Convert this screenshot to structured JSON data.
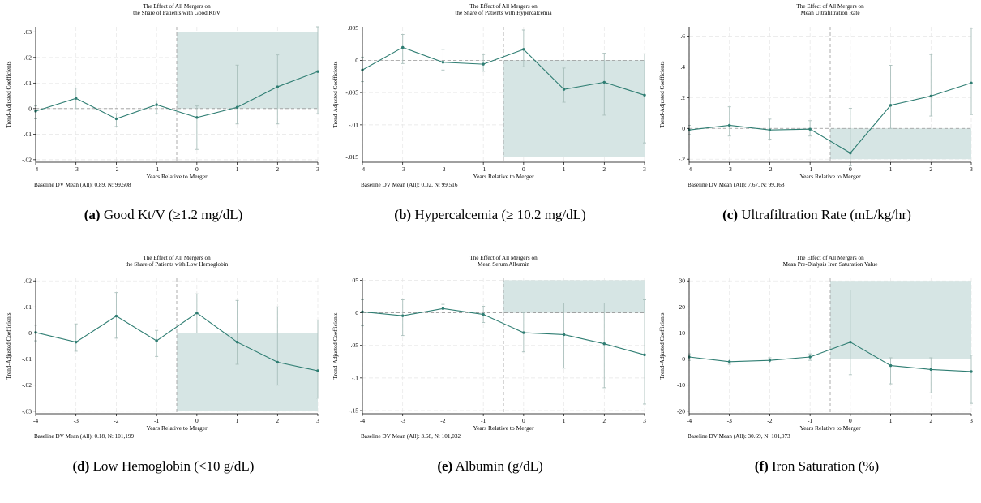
{
  "figure": {
    "panels": [
      {
        "caption_label": "(a)",
        "caption_text": "Good Kt/V (≥1.2 mg/dL)",
        "chart_data": {
          "type": "line",
          "title": [
            "The Effect of All Mergers on",
            "the Share of Patients with Good Kt/V"
          ],
          "xlabel": "Years Relative to Merger",
          "ylabel": "Trend-Adjusted Coefficients",
          "footer": "Baseline DV Mean (All):  0.89,  N:  99,508",
          "x": [
            -4,
            -3,
            -2,
            -1,
            0,
            1,
            2,
            3
          ],
          "y": [
            -0.001,
            0.004,
            -0.004,
            0.0015,
            -0.0035,
            0.0005,
            0.0085,
            0.0145
          ],
          "ci_low": [
            -0.004,
            0.0,
            -0.007,
            -0.002,
            -0.016,
            -0.006,
            -0.006,
            -0.002
          ],
          "ci_high": [
            0.001,
            0.008,
            -0.002,
            0.003,
            0.001,
            0.017,
            0.021,
            0.032
          ],
          "xlim": [
            -4,
            3
          ],
          "ylim": [
            -0.021,
            0.032
          ],
          "yticks": [
            -0.02,
            -0.01,
            0,
            0.01,
            0.02,
            0.03
          ],
          "yticklabels": [
            "-.02",
            "-.01",
            "0",
            ".01",
            ".02",
            ".03"
          ],
          "xticks": [
            -4,
            -3,
            -2,
            -1,
            0,
            1,
            2,
            3
          ],
          "xticklabels": [
            "-4",
            "-3",
            "-2",
            "-1",
            "0",
            "1",
            "2",
            "3"
          ],
          "shade": {
            "x_from": -0.5,
            "x_to": 3,
            "y_from": 0,
            "y_to": 0.03
          },
          "vline": -0.5,
          "grid": true
        }
      },
      {
        "caption_label": "(b)",
        "caption_text": "Hypercalcemia (≥ 10.2 mg/dL)",
        "chart_data": {
          "type": "line",
          "title": [
            "The Effect of All Mergers on",
            "the Share of Patients with Hypercalcemia"
          ],
          "xlabel": "Years Relative to Merger",
          "ylabel": "Trend-Adjusted Coefficients",
          "footer": "Baseline DV Mean (All):  0.02,  N:  99,516",
          "x": [
            -4,
            -3,
            -2,
            -1,
            0,
            1,
            2,
            3
          ],
          "y": [
            -0.0015,
            0.002,
            -0.0003,
            -0.0006,
            0.0017,
            -0.0045,
            -0.0034,
            -0.0054
          ],
          "ci_low": [
            -0.0033,
            -0.0005,
            -0.0015,
            -0.0017,
            -0.001,
            -0.0065,
            -0.0085,
            -0.0128
          ],
          "ci_high": [
            0.0005,
            0.004,
            0.0017,
            0.0009,
            0.0047,
            -0.0012,
            0.0011,
            0.001
          ],
          "xlim": [
            -4,
            3
          ],
          "ylim": [
            -0.0158,
            0.0052
          ],
          "yticks": [
            -0.015,
            -0.01,
            -0.005,
            0,
            0.005
          ],
          "yticklabels": [
            "-.015",
            "-.01",
            "-.005",
            "0",
            ".005"
          ],
          "xticks": [
            -4,
            -3,
            -2,
            -1,
            0,
            1,
            2,
            3
          ],
          "xticklabels": [
            "-4",
            "-3",
            "-2",
            "-1",
            "0",
            "1",
            "2",
            "3"
          ],
          "shade": {
            "x_from": -0.5,
            "x_to": 3,
            "y_from": -0.015,
            "y_to": 0
          },
          "vline": -0.5,
          "grid": true
        }
      },
      {
        "caption_label": "(c)",
        "caption_text": "Ultrafiltration Rate (mL/kg/hr)",
        "chart_data": {
          "type": "line",
          "title": [
            "The Effect of All Mergers on",
            "Mean Ultrafiltration Rate"
          ],
          "xlabel": "Years Relative to Merger",
          "ylabel": "Trend-Adjusted Coefficients",
          "footer": "Baseline DV Mean (All):  7.67,  N:  99,168",
          "x": [
            -4,
            -3,
            -2,
            -1,
            0,
            1,
            2,
            3
          ],
          "y": [
            -0.01,
            0.02,
            -0.01,
            -0.005,
            -0.16,
            0.15,
            0.21,
            0.295
          ],
          "ci_low": [
            -0.04,
            -0.05,
            -0.07,
            -0.05,
            -0.24,
            0.0,
            0.08,
            0.09
          ],
          "ci_high": [
            0.02,
            0.14,
            0.06,
            0.05,
            0.13,
            0.41,
            0.48,
            0.65
          ],
          "xlim": [
            -4,
            3
          ],
          "ylim": [
            -0.22,
            0.66
          ],
          "yticks": [
            -0.2,
            0,
            0.2,
            0.4,
            0.6
          ],
          "yticklabels": [
            "-.2",
            "0",
            ".2",
            ".4",
            ".6"
          ],
          "xticks": [
            -4,
            -3,
            -2,
            -1,
            0,
            1,
            2,
            3
          ],
          "xticklabels": [
            "-4",
            "-3",
            "-2",
            "-1",
            "0",
            "1",
            "2",
            "3"
          ],
          "shade": {
            "x_from": -0.5,
            "x_to": 3,
            "y_from": -0.2,
            "y_to": 0
          },
          "vline": -0.5,
          "grid": true
        }
      },
      {
        "caption_label": "(d)",
        "caption_text": "Low Hemoglobin (<10 g/dL)",
        "chart_data": {
          "type": "line",
          "title": [
            "The Effect of All Mergers on",
            "the Share of Patients with Low Hemoglobin"
          ],
          "xlabel": "Years Relative to Merger",
          "ylabel": "Trend-Adjusted Coefficients",
          "footer": "Baseline DV Mean (All):  0.18,  N:  101,199",
          "x": [
            -4,
            -3,
            -2,
            -1,
            0,
            1,
            2,
            3
          ],
          "y": [
            0.0002,
            -0.0035,
            0.0065,
            -0.003,
            0.0077,
            -0.0035,
            -0.0112,
            -0.0145
          ],
          "ci_low": [
            -0.003,
            -0.007,
            -0.002,
            -0.009,
            0.0,
            -0.012,
            -0.02,
            -0.025
          ],
          "ci_high": [
            0.003,
            0.0035,
            0.0155,
            0.001,
            0.015,
            0.0125,
            0.01,
            0.005
          ],
          "xlim": [
            -4,
            3
          ],
          "ylim": [
            -0.031,
            0.021
          ],
          "yticks": [
            -0.03,
            -0.02,
            -0.01,
            0,
            0.01,
            0.02
          ],
          "yticklabels": [
            "-.03",
            "-.02",
            "-.01",
            "0",
            ".01",
            ".02"
          ],
          "xticks": [
            -4,
            -3,
            -2,
            -1,
            0,
            1,
            2,
            3
          ],
          "xticklabels": [
            "-4",
            "-3",
            "-2",
            "-1",
            "0",
            "1",
            "2",
            "3"
          ],
          "shade": {
            "x_from": -0.5,
            "x_to": 3,
            "y_from": -0.03,
            "y_to": 0
          },
          "vline": -0.5,
          "grid": true
        }
      },
      {
        "caption_label": "(e)",
        "caption_text": "Albumin (g/dL)",
        "chart_data": {
          "type": "line",
          "title": [
            "The Effect of All Mergers on",
            "Mean Serum Albumin"
          ],
          "xlabel": "Years Relative to Merger",
          "ylabel": "Trend-Adjusted Coefficients",
          "footer": "Baseline DV Mean (All):  3.68,  N:  101,032",
          "x": [
            -4,
            -3,
            -2,
            -1,
            0,
            1,
            2,
            3
          ],
          "y": [
            0.0015,
            -0.0045,
            0.0065,
            -0.0025,
            -0.0305,
            -0.0335,
            -0.0475,
            -0.0645
          ],
          "ci_low": [
            -0.02,
            -0.035,
            -0.005,
            -0.015,
            -0.06,
            -0.085,
            -0.115,
            -0.14
          ],
          "ci_high": [
            0.02,
            0.02,
            0.013,
            0.01,
            0.0,
            0.015,
            0.015,
            0.02
          ],
          "xlim": [
            -4,
            3
          ],
          "ylim": [
            -0.155,
            0.053
          ],
          "yticks": [
            -0.15,
            -0.1,
            -0.05,
            0,
            0.05
          ],
          "yticklabels": [
            "-.15",
            "-.1",
            "-.05",
            "0",
            ".05"
          ],
          "xticks": [
            -4,
            -3,
            -2,
            -1,
            0,
            1,
            2,
            3
          ],
          "xticklabels": [
            "-4",
            "-3",
            "-2",
            "-1",
            "0",
            "1",
            "2",
            "3"
          ],
          "shade": {
            "x_from": -0.5,
            "x_to": 3,
            "y_from": 0,
            "y_to": 0.05
          },
          "vline": -0.5,
          "grid": true
        }
      },
      {
        "caption_label": "(f)",
        "caption_text": "Iron Saturation (%)",
        "chart_data": {
          "type": "line",
          "title": [
            "The Effect of All Mergers on",
            "Mean Pre-Dialysis Iron Saturation Value"
          ],
          "xlabel": "Years Relative to Merger",
          "ylabel": "Trend-Adjusted Coefficients",
          "footer": "Baseline DV Mean (All):  30.69,  N:  101,073",
          "x": [
            -4,
            -3,
            -2,
            -1,
            0,
            1,
            2,
            3
          ],
          "y": [
            0.8,
            -1.0,
            -0.5,
            0.8,
            6.5,
            -2.5,
            -4.0,
            -4.8
          ],
          "ci_low": [
            -0.5,
            -2.0,
            -1.5,
            -0.5,
            -6.0,
            -9.5,
            -13.0,
            -17.0
          ],
          "ci_high": [
            2.0,
            0.0,
            0.5,
            2.0,
            26.5,
            0.5,
            0.5,
            1.5
          ],
          "xlim": [
            -4,
            3
          ],
          "ylim": [
            -21,
            31
          ],
          "yticks": [
            -20,
            -10,
            0,
            10,
            20,
            30
          ],
          "yticklabels": [
            "-20",
            "-10",
            "0",
            "10",
            "20",
            "30"
          ],
          "xticks": [
            -4,
            -3,
            -2,
            -1,
            0,
            1,
            2,
            3
          ],
          "xticklabels": [
            "-4",
            "-3",
            "-2",
            "-1",
            "0",
            "1",
            "2",
            "3"
          ],
          "shade": {
            "x_from": -0.5,
            "x_to": 3,
            "y_from": 0,
            "y_to": 30
          },
          "vline": -0.5,
          "grid": true
        }
      }
    ],
    "colors": {
      "line": "#2e7d72",
      "ci": "#a9bfbb",
      "shade": "#d6e5e4",
      "grid": "#e6e6e6",
      "reference": "#999999"
    }
  }
}
